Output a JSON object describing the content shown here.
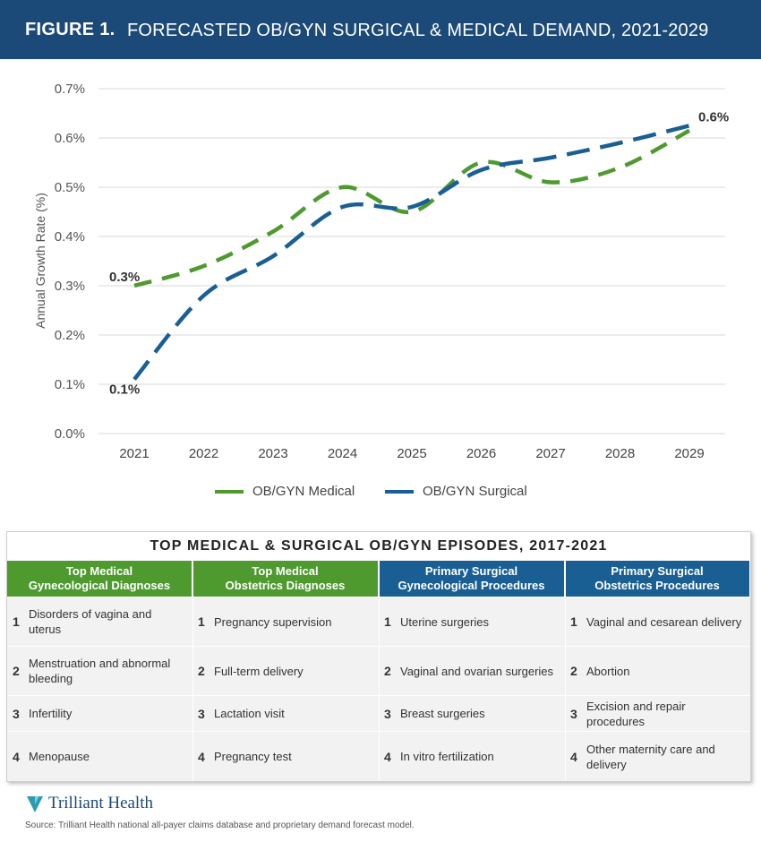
{
  "header": {
    "figure_label": "FIGURE 1.",
    "title": "FORECASTED OB/GYN SURGICAL & MEDICAL DEMAND, 2021-2029"
  },
  "chart_data": {
    "type": "line",
    "title": "FORECASTED OB/GYN SURGICAL & MEDICAL DEMAND, 2021-2029",
    "xlabel": "",
    "ylabel": "Annual Growth Rate (%)",
    "categories": [
      "2021",
      "2022",
      "2023",
      "2024",
      "2025",
      "2026",
      "2027",
      "2028",
      "2029"
    ],
    "y_ticks": [
      "0.0%",
      "0.1%",
      "0.2%",
      "0.3%",
      "0.4%",
      "0.5%",
      "0.6%",
      "0.7%"
    ],
    "ylim": [
      0,
      0.7
    ],
    "grid": true,
    "legend_position": "bottom",
    "series": [
      {
        "name": "OB/GYN Medical",
        "color": "#4e9a2f",
        "values": [
          0.3,
          0.34,
          0.41,
          0.5,
          0.45,
          0.55,
          0.51,
          0.54,
          0.615
        ]
      },
      {
        "name": "OB/GYN Surgical",
        "color": "#1a5f94",
        "values": [
          0.11,
          0.28,
          0.36,
          0.46,
          0.46,
          0.535,
          0.56,
          0.59,
          0.625
        ]
      }
    ],
    "annotations": [
      {
        "text": "0.3%",
        "series": "OB/GYN Medical",
        "category": "2021"
      },
      {
        "text": "0.1%",
        "series": "OB/GYN Surgical",
        "category": "2021"
      },
      {
        "text": "0.6%",
        "series": "OB/GYN Surgical",
        "category": "2029"
      }
    ]
  },
  "table": {
    "title": "TOP MEDICAL & SURGICAL OB/GYN EPISODES, 2017-2021",
    "columns": [
      {
        "line1": "Top Medical",
        "line2": "Gynecological Diagnoses",
        "color": "#4e9a2f",
        "items": [
          "Disorders of vagina and uterus",
          "Menstruation and abnormal bleeding",
          "Infertility",
          "Menopause"
        ]
      },
      {
        "line1": "Top Medical",
        "line2": "Obstetrics Diagnoses",
        "color": "#4e9a2f",
        "items": [
          "Pregnancy supervision",
          "Full-term delivery",
          "Lactation visit",
          "Pregnancy test"
        ]
      },
      {
        "line1": "Primary Surgical",
        "line2": "Gynecological Procedures",
        "color": "#1a5f94",
        "items": [
          "Uterine surgeries",
          "Vaginal and ovarian surgeries",
          "Breast surgeries",
          "In vitro fertilization"
        ]
      },
      {
        "line1": "Primary Surgical",
        "line2": "Obstetrics Procedures",
        "color": "#1a5f94",
        "items": [
          "Vaginal and cesarean delivery",
          "Abortion",
          "Excision and repair procedures",
          "Other maternity care and delivery"
        ]
      }
    ],
    "ranks": [
      "1",
      "2",
      "3",
      "4"
    ]
  },
  "footer": {
    "logo_text": "Trilliant Health",
    "source": "Source: Trilliant Health national all-payer claims database and proprietary demand forecast model."
  }
}
